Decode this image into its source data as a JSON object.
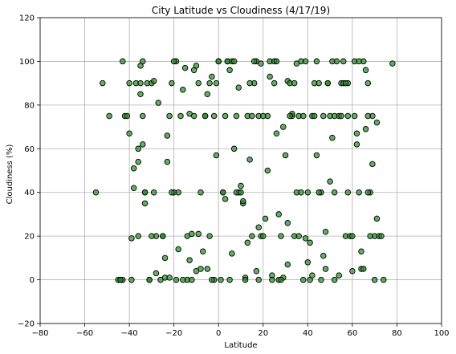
{
  "chart_data": {
    "type": "scatter",
    "title": "City Latitude vs Cloudiness (4/17/19)",
    "xlabel": "Latitude",
    "ylabel": "Cloudiness (%)",
    "xlim": [
      -80,
      100
    ],
    "ylim": [
      -20,
      120
    ],
    "xticks": [
      -80,
      -60,
      -40,
      -20,
      0,
      20,
      40,
      60,
      80,
      100
    ],
    "yticks": [
      -20,
      0,
      20,
      40,
      60,
      80,
      100,
      120
    ],
    "grid": true,
    "marker_color": "#228b22",
    "marker_edge_color": "#000000",
    "x": [
      -55,
      -52,
      -49,
      -45,
      -44,
      -43,
      -42,
      -40,
      -39,
      -38,
      -37,
      -36,
      -35,
      -35,
      -34,
      -33,
      -33,
      -32,
      -31,
      -30,
      -29,
      -28,
      -27,
      -26,
      -25,
      -24,
      -23,
      -22,
      -21,
      -20,
      -19,
      -18,
      -17,
      -16,
      -15,
      -14,
      -13,
      -12,
      -11,
      -10,
      -9,
      -8,
      -7,
      -6,
      -5,
      -4,
      -3,
      -2,
      -1,
      0,
      1,
      2,
      3,
      4,
      5,
      6,
      7,
      8,
      9,
      10,
      11,
      12,
      13,
      14,
      15,
      16,
      17,
      18,
      19,
      20,
      21,
      22,
      23,
      24,
      25,
      26,
      27,
      28,
      29,
      30,
      31,
      32,
      33,
      34,
      35,
      36,
      37,
      38,
      39,
      40,
      41,
      42,
      43,
      44,
      45,
      46,
      47,
      48,
      49,
      50,
      51,
      52,
      53,
      54,
      55,
      56,
      57,
      58,
      59,
      60,
      61,
      62,
      63,
      64,
      65,
      66,
      67,
      68,
      69,
      70,
      71,
      72,
      73,
      78,
      -43,
      -41,
      -40,
      -38,
      -36,
      -34,
      -33,
      -31,
      -29,
      -25,
      -22,
      -20,
      -18,
      -16,
      -13,
      -10,
      -8,
      -6,
      -4,
      -2,
      0,
      3,
      6,
      9,
      12,
      15,
      18,
      22,
      25,
      28,
      31,
      34,
      37,
      40,
      43,
      46,
      49,
      52,
      55,
      58,
      61,
      64,
      67,
      70,
      -44,
      -39,
      -35,
      -30,
      -24,
      -19,
      -14,
      -9,
      -3,
      2,
      7,
      13,
      19,
      24,
      29,
      33,
      38,
      44,
      50,
      56,
      62,
      68,
      74,
      -36,
      -28,
      -21,
      -11,
      -1,
      8,
      17,
      26,
      35,
      45,
      54,
      63,
      71,
      -34,
      -23,
      -12,
      -5,
      4,
      10,
      20,
      31,
      42,
      52,
      60,
      66,
      14,
      27,
      39,
      47,
      58,
      16,
      36,
      48,
      65,
      11,
      23,
      41,
      57,
      69,
      5,
      18,
      32,
      51,
      67
    ],
    "y": [
      40,
      90,
      75,
      0,
      0,
      100,
      75,
      90,
      19,
      42,
      90,
      60,
      85,
      98,
      100,
      35,
      40,
      90,
      0,
      90,
      40,
      20,
      81,
      0,
      20,
      1,
      66,
      75,
      90,
      40,
      100,
      40,
      75,
      87,
      97,
      0,
      76,
      0,
      96,
      98,
      21,
      5,
      13,
      75,
      85,
      90,
      93,
      75,
      57,
      100,
      0,
      40,
      37,
      100,
      96,
      100,
      60,
      75,
      40,
      43,
      35,
      1,
      75,
      55,
      20,
      90,
      4,
      75,
      20,
      20,
      28,
      75,
      100,
      2,
      90,
      67,
      0,
      20,
      1,
      57,
      91,
      90,
      75,
      90,
      40,
      75,
      100,
      0,
      19,
      40,
      0,
      75,
      90,
      100,
      90,
      40,
      75,
      22,
      90,
      75,
      100,
      40,
      100,
      75,
      75,
      100,
      20,
      90,
      20,
      20,
      75,
      67,
      40,
      5,
      100,
      69,
      90,
      40,
      75,
      20,
      72,
      20,
      20,
      99,
      0,
      75,
      67,
      51,
      54,
      62,
      40,
      0,
      91,
      20,
      1,
      100,
      14,
      0,
      9,
      4,
      40,
      75,
      20,
      0,
      100,
      75,
      12,
      88,
      0,
      75,
      0,
      50,
      100,
      0,
      26,
      20,
      40,
      8,
      75,
      0,
      90,
      0,
      90,
      40,
      100,
      13,
      75,
      0,
      0,
      0,
      90,
      20,
      10,
      0,
      20,
      90,
      0,
      40,
      100,
      17,
      99,
      0,
      70,
      76,
      75,
      57,
      45,
      90,
      62,
      20,
      0,
      20,
      3,
      40,
      75,
      90,
      40,
      100,
      100,
      99,
      40,
      2,
      100,
      28,
      75,
      54,
      21,
      5,
      100,
      40,
      75,
      7,
      2,
      75,
      4,
      96,
      90,
      30,
      100,
      11,
      75,
      100,
      20,
      5,
      5,
      36,
      93,
      17,
      90,
      53,
      0,
      24,
      75,
      65,
      40
    ],
    "y_extra_note": ""
  }
}
